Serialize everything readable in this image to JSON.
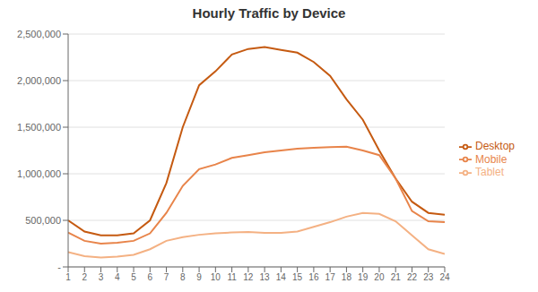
{
  "chart_data": {
    "type": "line",
    "title": "Hourly Traffic by Device",
    "x": [
      1,
      2,
      3,
      4,
      5,
      6,
      7,
      8,
      9,
      10,
      11,
      12,
      13,
      14,
      15,
      16,
      17,
      18,
      19,
      20,
      21,
      22,
      23,
      24
    ],
    "series": [
      {
        "name": "Desktop",
        "color": "#C55A11",
        "values": [
          500000,
          380000,
          340000,
          340000,
          360000,
          500000,
          900000,
          1500000,
          1950000,
          2100000,
          2280000,
          2340000,
          2360000,
          2330000,
          2300000,
          2200000,
          2050000,
          1800000,
          1580000,
          1250000,
          950000,
          700000,
          580000,
          560000
        ]
      },
      {
        "name": "Mobile",
        "color": "#E8844A",
        "values": [
          370000,
          280000,
          250000,
          260000,
          280000,
          360000,
          580000,
          870000,
          1050000,
          1100000,
          1170000,
          1200000,
          1230000,
          1250000,
          1270000,
          1280000,
          1285000,
          1290000,
          1250000,
          1200000,
          950000,
          600000,
          490000,
          480000
        ]
      },
      {
        "name": "Tablet",
        "color": "#F4B183",
        "values": [
          160000,
          115000,
          100000,
          110000,
          130000,
          190000,
          280000,
          320000,
          345000,
          360000,
          370000,
          375000,
          365000,
          365000,
          380000,
          430000,
          480000,
          540000,
          580000,
          570000,
          490000,
          340000,
          190000,
          140000
        ]
      }
    ],
    "xlim": [
      1,
      24
    ],
    "xticks": [
      1,
      2,
      3,
      4,
      5,
      6,
      7,
      8,
      9,
      10,
      11,
      12,
      13,
      14,
      15,
      16,
      17,
      18,
      19,
      20,
      21,
      22,
      23,
      24
    ],
    "ylim": [
      0,
      2500000
    ],
    "yticks": [
      {
        "value": 0,
        "label": "-"
      },
      {
        "value": 500000,
        "label": "500,000"
      },
      {
        "value": 1000000,
        "label": "1,000,000"
      },
      {
        "value": 1500000,
        "label": "1,500,000"
      },
      {
        "value": 2000000,
        "label": "2,000,000"
      },
      {
        "value": 2500000,
        "label": "2,500,000"
      }
    ],
    "grid": "y",
    "legend": "right"
  }
}
